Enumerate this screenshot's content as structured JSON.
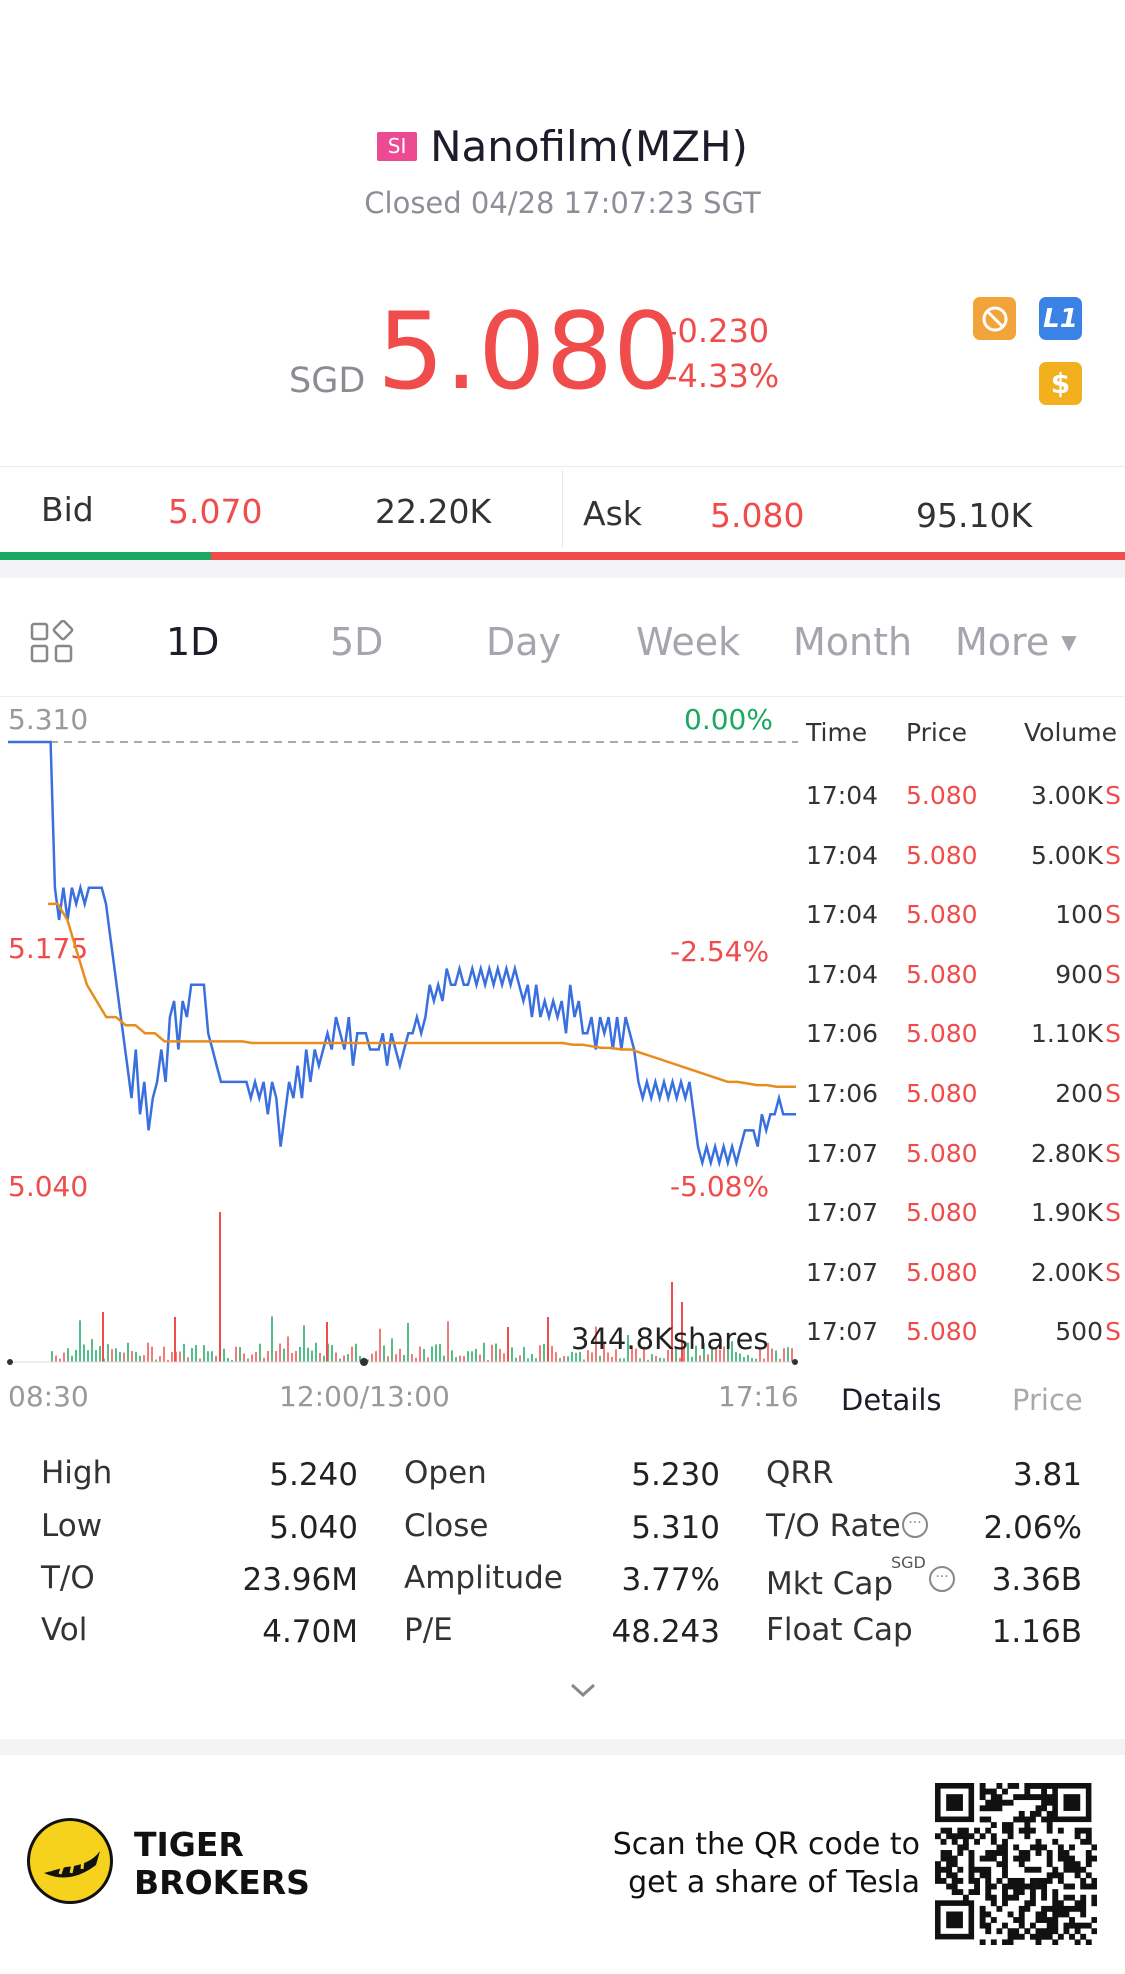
{
  "header": {
    "exchange_badge": "SI",
    "title": "Nanofilm(MZH)",
    "status": "Closed 04/28 17:07:23 SGT"
  },
  "quote": {
    "currency": "SGD",
    "price": "5.080",
    "change": "-0.230",
    "change_pct": "-4.33%",
    "icons": [
      "no-short-icon",
      "level1-icon",
      "dollar-icon"
    ],
    "level_label": "L1",
    "dollar_label": "$"
  },
  "bidask": {
    "bid_label": "Bid",
    "bid_price": "5.070",
    "bid_size": "22.20K",
    "ask_label": "Ask",
    "ask_price": "5.080",
    "ask_size": "95.10K",
    "bid_share": 0.19
  },
  "tabs": [
    "1D",
    "5D",
    "Day",
    "Week",
    "Month",
    "More"
  ],
  "active_tab": "1D",
  "chart_data": {
    "type": "line",
    "y_labels": {
      "top": "5.310",
      "mid": "5.175",
      "bottom": "5.040"
    },
    "pct_labels": {
      "top": "0.00%",
      "mid": "-2.54%",
      "bottom": "-5.08%"
    },
    "x_labels": [
      "08:30",
      "12:00/13:00",
      "17:16"
    ],
    "ylim": [
      5.04,
      5.31
    ],
    "volume_label": "344.8Kshares",
    "series": [
      {
        "color": "#3a6fe0",
        "values": [
          5.31,
          5.31,
          5.31,
          5.31,
          5.31,
          5.31,
          5.31,
          5.31,
          5.31,
          5.31,
          5.31,
          5.22,
          5.2,
          5.22,
          5.2,
          5.22,
          5.21,
          5.22,
          5.21,
          5.22,
          5.22,
          5.22,
          5.22,
          5.21,
          5.19,
          5.17,
          5.15,
          5.13,
          5.11,
          5.09,
          5.12,
          5.08,
          5.1,
          5.07,
          5.09,
          5.1,
          5.12,
          5.1,
          5.14,
          5.15,
          5.12,
          5.15,
          5.14,
          5.16,
          5.16,
          5.16,
          5.16,
          5.13,
          5.12,
          5.11,
          5.1,
          5.1,
          5.1,
          5.1,
          5.1,
          5.1,
          5.1,
          5.09,
          5.1,
          5.09,
          5.1,
          5.08,
          5.1,
          5.09,
          5.06,
          5.08,
          5.1,
          5.09,
          5.11,
          5.09,
          5.12,
          5.1,
          5.12,
          5.11,
          5.12,
          5.13,
          5.12,
          5.14,
          5.13,
          5.12,
          5.14,
          5.11,
          5.13,
          5.13,
          5.13,
          5.12,
          5.12,
          5.12,
          5.13,
          5.11,
          5.13,
          5.12,
          5.11,
          5.12,
          5.13,
          5.13,
          5.14,
          5.13,
          5.14,
          5.16,
          5.15,
          5.16,
          5.15,
          5.17,
          5.16,
          5.16,
          5.17,
          5.16,
          5.16,
          5.17,
          5.16,
          5.17,
          5.16,
          5.17,
          5.16,
          5.17,
          5.16,
          5.17,
          5.16,
          5.17,
          5.16,
          5.15,
          5.16,
          5.14,
          5.16,
          5.14,
          5.15,
          5.14,
          5.15,
          5.14,
          5.15,
          5.13,
          5.16,
          5.14,
          5.15,
          5.13,
          5.13,
          5.14,
          5.12,
          5.14,
          5.13,
          5.14,
          5.12,
          5.14,
          5.12,
          5.14,
          5.13,
          5.12,
          5.1,
          5.09,
          5.1,
          5.09,
          5.1,
          5.09,
          5.1,
          5.09,
          5.1,
          5.09,
          5.1,
          5.09,
          5.1,
          5.08,
          5.06,
          5.05,
          5.06,
          5.05,
          5.06,
          5.05,
          5.06,
          5.05,
          5.06,
          5.05,
          5.06,
          5.07,
          5.07,
          5.07,
          5.06,
          5.08,
          5.07,
          5.08,
          5.08,
          5.09,
          5.08,
          5.08,
          5.08,
          5.08
        ]
      },
      {
        "color": "#e98c1e",
        "values": [
          5.21,
          5.21,
          5.2,
          5.18,
          5.16,
          5.15,
          5.14,
          5.14,
          5.135,
          5.135,
          5.13,
          5.13,
          5.125,
          5.125,
          5.125,
          5.125,
          5.125,
          5.125,
          5.125,
          5.125,
          5.125,
          5.124,
          5.124,
          5.124,
          5.124,
          5.124,
          5.124,
          5.124,
          5.124,
          5.124,
          5.124,
          5.124,
          5.124,
          5.124,
          5.124,
          5.124,
          5.124,
          5.124,
          5.124,
          5.124,
          5.124,
          5.124,
          5.124,
          5.124,
          5.124,
          5.124,
          5.124,
          5.124,
          5.124,
          5.124,
          5.124,
          5.124,
          5.124,
          5.124,
          5.123,
          5.123,
          5.122,
          5.121,
          5.121,
          5.12,
          5.12,
          5.118,
          5.116,
          5.114,
          5.112,
          5.11,
          5.108,
          5.106,
          5.104,
          5.102,
          5.1,
          5.1,
          5.099,
          5.098,
          5.098,
          5.097,
          5.097,
          5.097
        ]
      }
    ]
  },
  "trades": {
    "headers": [
      "Time",
      "Price",
      "Volume"
    ],
    "rows": [
      {
        "time": "17:04",
        "price": "5.080",
        "volume": "3.00K",
        "side": "S"
      },
      {
        "time": "17:04",
        "price": "5.080",
        "volume": "5.00K",
        "side": "S"
      },
      {
        "time": "17:04",
        "price": "5.080",
        "volume": "100",
        "side": "S"
      },
      {
        "time": "17:04",
        "price": "5.080",
        "volume": "900",
        "side": "S"
      },
      {
        "time": "17:06",
        "price": "5.080",
        "volume": "1.10K",
        "side": "S"
      },
      {
        "time": "17:06",
        "price": "5.080",
        "volume": "200",
        "side": "S"
      },
      {
        "time": "17:07",
        "price": "5.080",
        "volume": "2.80K",
        "side": "S"
      },
      {
        "time": "17:07",
        "price": "5.080",
        "volume": "1.90K",
        "side": "S"
      },
      {
        "time": "17:07",
        "price": "5.080",
        "volume": "2.00K",
        "side": "S"
      },
      {
        "time": "17:07",
        "price": "5.080",
        "volume": "500",
        "side": "S"
      }
    ],
    "tab_details": "Details",
    "tab_price": "Price"
  },
  "details": {
    "high_label": "High",
    "high": "5.240",
    "low_label": "Low",
    "low": "5.040",
    "to_label": "T/O",
    "to": "23.96M",
    "vol_label": "Vol",
    "vol": "4.70M",
    "open_label": "Open",
    "open": "5.230",
    "close_label": "Close",
    "close": "5.310",
    "amp_label": "Amplitude",
    "amp": "3.77%",
    "pe_label": "P/E",
    "pe": "48.243",
    "qrr_label": "QRR",
    "qrr": "3.81",
    "tor_label": "T/O Rate",
    "tor": "2.06%",
    "mcap_label": "Mkt Cap",
    "mcap_unit": "SGD",
    "mcap": "3.36B",
    "fcap_label": "Float Cap",
    "fcap": "1.16B"
  },
  "footer": {
    "brand_line1": "TIGER",
    "brand_line2": "BROKERS",
    "promo_line1": "Scan the QR code to",
    "promo_line2": "get a share of Tesla"
  },
  "colors": {
    "up": "#1aa960",
    "down": "#f04c4c",
    "accent": "#3a6fe0",
    "avg": "#e98c1e"
  }
}
